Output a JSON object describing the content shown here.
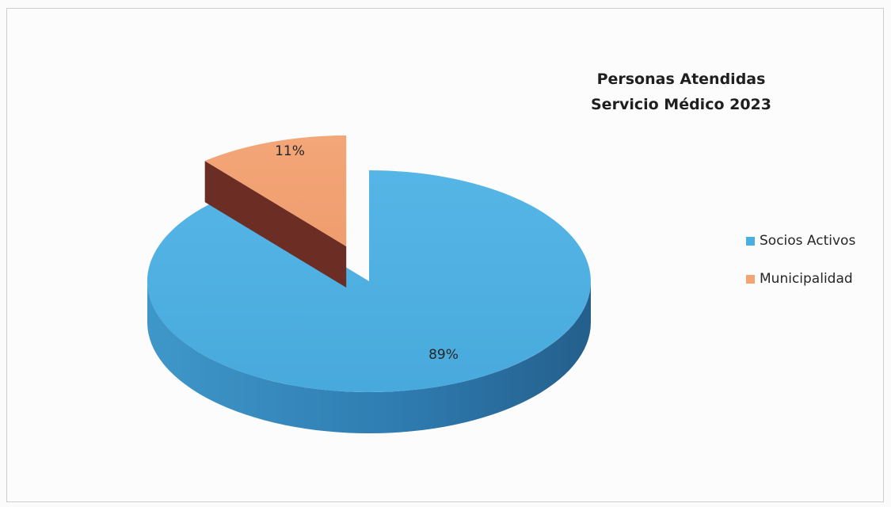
{
  "chart_data": {
    "type": "pie",
    "title": [
      "Personas Atendidas",
      "Servicio Médico 2023"
    ],
    "categories": [
      "Socios Activos",
      "Municipalidad"
    ],
    "values": [
      89,
      11
    ],
    "data_labels": [
      "89%",
      "11%"
    ],
    "colors": [
      "#4aaee0",
      "#f2a475"
    ],
    "legend": "right",
    "exploded": "Municipalidad",
    "three_d": true
  }
}
